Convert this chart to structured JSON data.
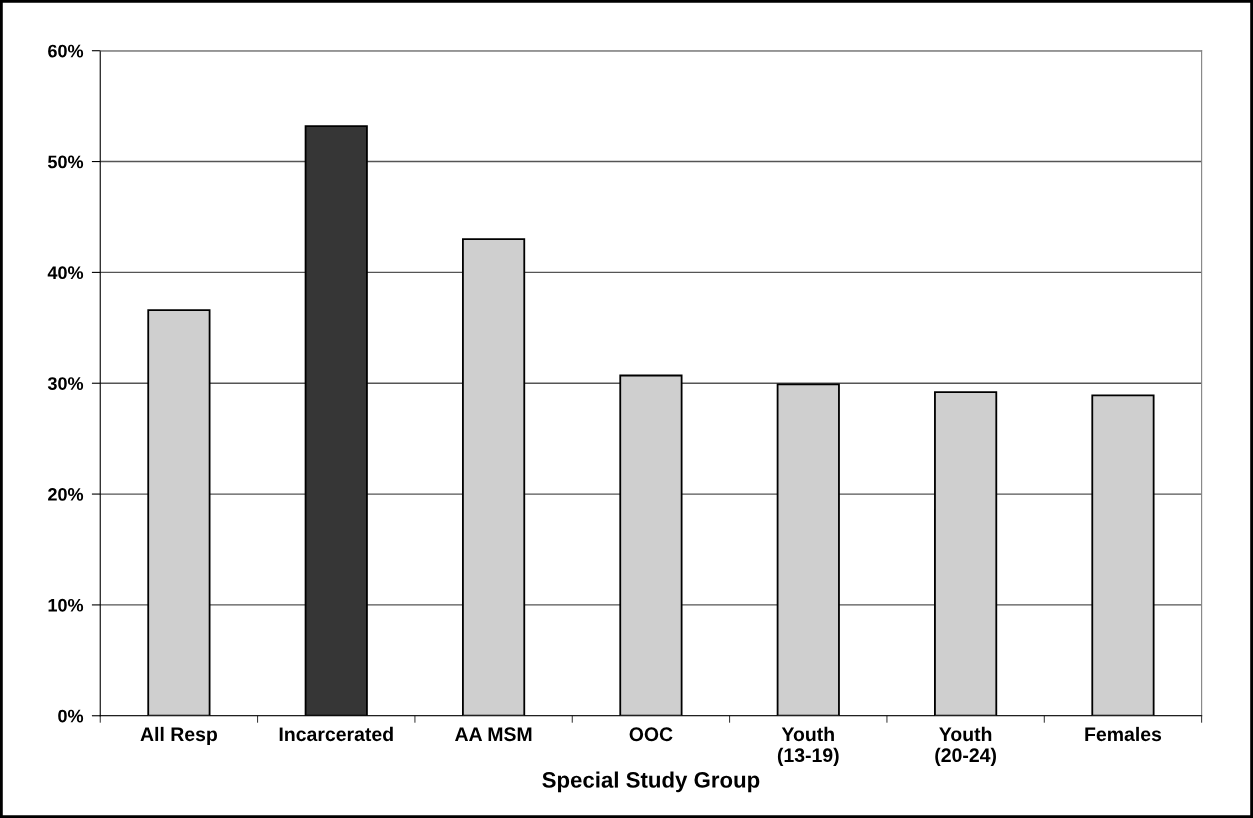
{
  "chart_data": {
    "type": "bar",
    "categories": [
      "All Resp",
      "Incarcerated",
      "AA MSM",
      "OOC",
      "Youth\n(13-19)",
      "Youth\n(20-24)",
      "Females"
    ],
    "values": [
      36.6,
      53.2,
      43.0,
      30.7,
      29.9,
      29.2,
      28.9
    ],
    "colors": [
      "#cfcfcf",
      "#363636",
      "#cfcfcf",
      "#cfcfcf",
      "#cfcfcf",
      "#cfcfcf",
      "#cfcfcf"
    ],
    "xlabel": "Special Study Group",
    "ylim": [
      0,
      60
    ],
    "yticks": [
      {
        "value": 0,
        "label": "0%"
      },
      {
        "value": 10,
        "label": "10%"
      },
      {
        "value": 20,
        "label": "20%"
      },
      {
        "value": 30,
        "label": "30%"
      },
      {
        "value": 40,
        "label": "40%"
      },
      {
        "value": 50,
        "label": "50%"
      },
      {
        "value": 60,
        "label": "60%"
      }
    ],
    "grid": "y",
    "legend": false
  }
}
